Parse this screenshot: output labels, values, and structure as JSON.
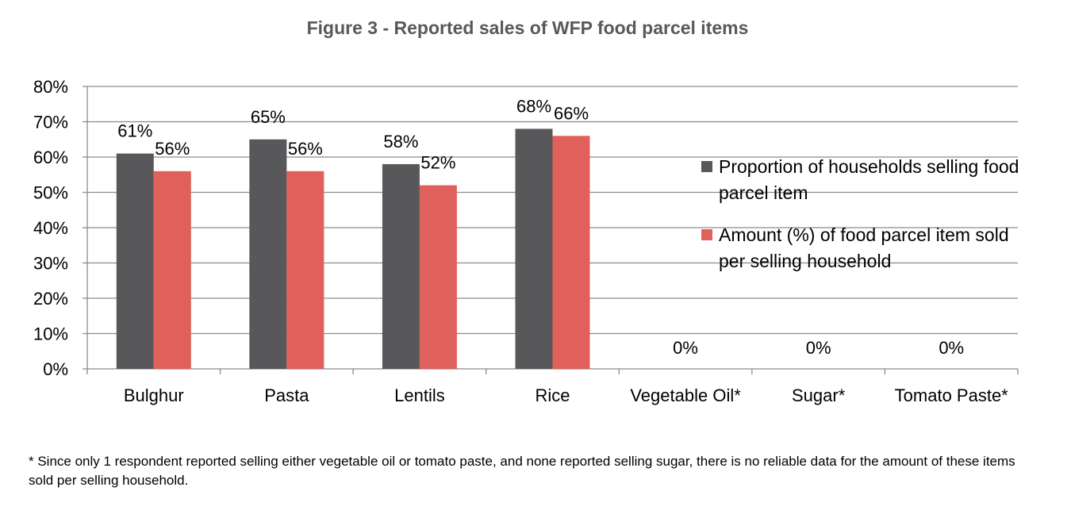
{
  "chart_data": {
    "type": "bar",
    "title": "Figure 3 - Reported sales of WFP food parcel items",
    "categories": [
      "Bulghur",
      "Pasta",
      "Lentils",
      "Rice",
      "Vegetable Oil*",
      "Sugar*",
      "Tomato Paste*"
    ],
    "series": [
      {
        "name": "Proportion of households selling food parcel item",
        "values": [
          61,
          65,
          58,
          68,
          0,
          0,
          0
        ],
        "labels": [
          "61%",
          "65%",
          "58%",
          "68%",
          "0%",
          "0%",
          "0%"
        ],
        "color": "#58585a"
      },
      {
        "name": "Amount (%) of food parcel item sold per selling household",
        "values": [
          56,
          56,
          52,
          66,
          null,
          null,
          null
        ],
        "labels": [
          "56%",
          "56%",
          "52%",
          "66%",
          "",
          "",
          ""
        ],
        "color": "#e0605b"
      }
    ],
    "y_ticks": [
      "0%",
      "10%",
      "20%",
      "30%",
      "40%",
      "50%",
      "60%",
      "70%",
      "80%"
    ],
    "ylim": [
      0,
      80
    ],
    "grid": true,
    "legend_position": "right"
  },
  "footnote": "* Since only 1 respondent reported selling either vegetable oil or tomato paste, and none reported selling sugar, there is no reliable data for the amount of these items sold per selling household."
}
